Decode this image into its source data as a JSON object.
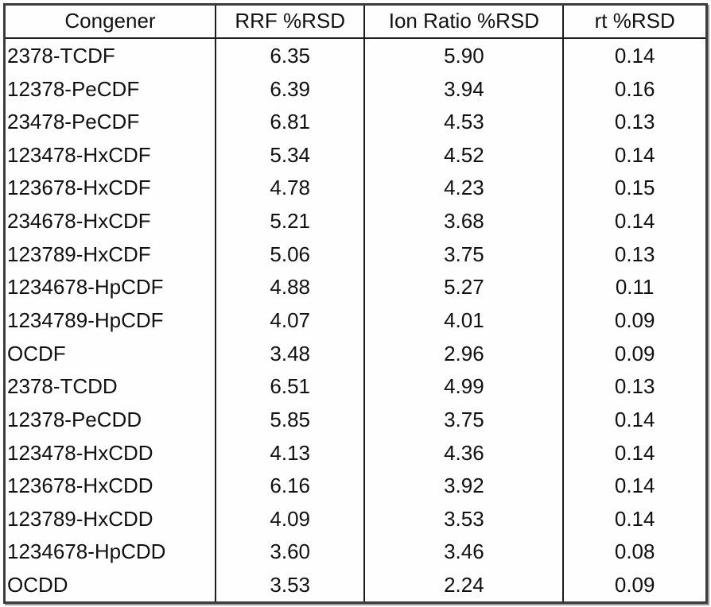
{
  "table": {
    "headers": [
      "Congener",
      "RRF %RSD",
      "Ion Ratio %RSD",
      "rt %RSD"
    ],
    "rows": [
      {
        "congener": "2378-TCDF",
        "rrf_rsd": "6.35",
        "ion_ratio_rsd": "5.90",
        "rt_rsd": "0.14"
      },
      {
        "congener": "12378-PeCDF",
        "rrf_rsd": "6.39",
        "ion_ratio_rsd": "3.94",
        "rt_rsd": "0.16"
      },
      {
        "congener": "23478-PeCDF",
        "rrf_rsd": "6.81",
        "ion_ratio_rsd": "4.53",
        "rt_rsd": "0.13"
      },
      {
        "congener": "123478-HxCDF",
        "rrf_rsd": "5.34",
        "ion_ratio_rsd": "4.52",
        "rt_rsd": "0.14"
      },
      {
        "congener": "123678-HxCDF",
        "rrf_rsd": "4.78",
        "ion_ratio_rsd": "4.23",
        "rt_rsd": "0.15"
      },
      {
        "congener": "234678-HxCDF",
        "rrf_rsd": "5.21",
        "ion_ratio_rsd": "3.68",
        "rt_rsd": "0.14"
      },
      {
        "congener": "123789-HxCDF",
        "rrf_rsd": "5.06",
        "ion_ratio_rsd": "3.75",
        "rt_rsd": "0.13"
      },
      {
        "congener": "1234678-HpCDF",
        "rrf_rsd": "4.88",
        "ion_ratio_rsd": "5.27",
        "rt_rsd": "0.11"
      },
      {
        "congener": "1234789-HpCDF",
        "rrf_rsd": "4.07",
        "ion_ratio_rsd": "4.01",
        "rt_rsd": "0.09"
      },
      {
        "congener": "OCDF",
        "rrf_rsd": "3.48",
        "ion_ratio_rsd": "2.96",
        "rt_rsd": "0.09"
      },
      {
        "congener": "2378-TCDD",
        "rrf_rsd": "6.51",
        "ion_ratio_rsd": "4.99",
        "rt_rsd": "0.13"
      },
      {
        "congener": "12378-PeCDD",
        "rrf_rsd": "5.85",
        "ion_ratio_rsd": "3.75",
        "rt_rsd": "0.14"
      },
      {
        "congener": "123478-HxCDD",
        "rrf_rsd": "4.13",
        "ion_ratio_rsd": "4.36",
        "rt_rsd": "0.14"
      },
      {
        "congener": "123678-HxCDD",
        "rrf_rsd": "6.16",
        "ion_ratio_rsd": "3.92",
        "rt_rsd": "0.14"
      },
      {
        "congener": "123789-HxCDD",
        "rrf_rsd": "4.09",
        "ion_ratio_rsd": "3.53",
        "rt_rsd": "0.14"
      },
      {
        "congener": "1234678-HpCDD",
        "rrf_rsd": "3.60",
        "ion_ratio_rsd": "3.46",
        "rt_rsd": "0.08"
      },
      {
        "congener": "OCDD",
        "rrf_rsd": "3.53",
        "ion_ratio_rsd": "2.24",
        "rt_rsd": "0.09"
      }
    ],
    "colors": {
      "background": "#fefefe",
      "text": "#111111",
      "inner_border": "#1c1c1c",
      "outer_border": "#3c3c3c",
      "outer_shadow": "#9a9a9a"
    }
  }
}
